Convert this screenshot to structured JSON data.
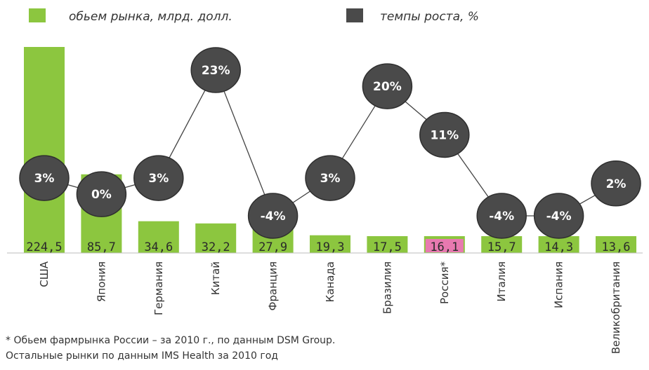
{
  "legend": {
    "market_label": "обьем рынка, млрд. долл.",
    "growth_label": "темпы роста, %"
  },
  "colors": {
    "bar": "#8cc63f",
    "bar_highlight": "#e879b0",
    "bubble": "#4a4a4a",
    "line": "#444444"
  },
  "footnote": {
    "line1": "* Обьем фармрынка России – за 2010 г., по данным DSM Group.",
    "line2": "Остальные рынки по данным IMS Health за 2010 год"
  },
  "chart_data": {
    "type": "bar",
    "categories": [
      "США",
      "Япония",
      "Германия",
      "Китай",
      "Франция",
      "Канада",
      "Бразилия",
      "Россия*",
      "Италия",
      "Испания",
      "Великобритания"
    ],
    "series": [
      {
        "name": "обьем рынка, млрд. долл.",
        "type": "bar",
        "values": [
          224.5,
          85.7,
          34.6,
          32.2,
          27.9,
          19.3,
          17.5,
          16.1,
          15.7,
          14.3,
          13.6
        ],
        "labels": [
          "224,5",
          "85,7",
          "34,6",
          "32,2",
          "27,9",
          "19,3",
          "17,5",
          "16,1",
          "15,7",
          "14,3",
          "13,6"
        ],
        "highlight_index": 7
      },
      {
        "name": "темпы роста, %",
        "type": "line",
        "values": [
          3,
          0,
          3,
          23,
          -4,
          3,
          20,
          11,
          -4,
          -4,
          2
        ],
        "labels": [
          "3%",
          "0%",
          "3%",
          "23%",
          "-4%",
          "3%",
          "20%",
          "11%",
          "-4%",
          "-4%",
          "2%"
        ]
      }
    ],
    "ylim": [
      0,
      224.5
    ],
    "legend_position": "top"
  }
}
